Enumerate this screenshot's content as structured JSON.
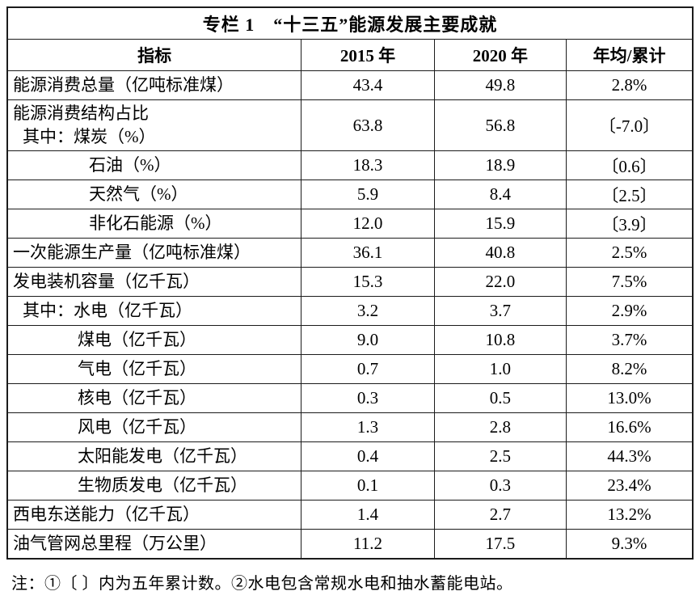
{
  "table": {
    "title": "专栏 1　“十三五”能源发展主要成就",
    "columns": [
      "指标",
      "2015 年",
      "2020 年",
      "年均/累计"
    ],
    "rows": [
      {
        "lines": [
          {
            "text": "能源消费总量（亿吨标准煤）",
            "indent": 0
          }
        ],
        "y2015": "43.4",
        "y2020": "49.8",
        "rate": "2.8%"
      },
      {
        "lines": [
          {
            "text": "能源消费结构占比",
            "indent": 0
          },
          {
            "text": "其中：煤炭（%）",
            "indent": 1
          }
        ],
        "y2015": "63.8",
        "y2020": "56.8",
        "rate": "〔-7.0〕"
      },
      {
        "lines": [
          {
            "text": "石油（%）",
            "indent": 2
          }
        ],
        "y2015": "18.3",
        "y2020": "18.9",
        "rate": "〔0.6〕"
      },
      {
        "lines": [
          {
            "text": "天然气（%）",
            "indent": 2
          }
        ],
        "y2015": "5.9",
        "y2020": "8.4",
        "rate": "〔2.5〕"
      },
      {
        "lines": [
          {
            "text": "非化石能源（%）",
            "indent": 2
          }
        ],
        "y2015": "12.0",
        "y2020": "15.9",
        "rate": "〔3.9〕"
      },
      {
        "lines": [
          {
            "text": "一次能源生产量（亿吨标准煤）",
            "indent": 0
          }
        ],
        "y2015": "36.1",
        "y2020": "40.8",
        "rate": "2.5%"
      },
      {
        "lines": [
          {
            "text": "发电装机容量（亿千瓦）",
            "indent": 0
          }
        ],
        "y2015": "15.3",
        "y2020": "22.0",
        "rate": "7.5%"
      },
      {
        "lines": [
          {
            "text": "其中：水电（亿千瓦）",
            "indent": 1
          }
        ],
        "y2015": "3.2",
        "y2020": "3.7",
        "rate": "2.9%"
      },
      {
        "lines": [
          {
            "text": "煤电（亿千瓦）",
            "indent": 3
          }
        ],
        "y2015": "9.0",
        "y2020": "10.8",
        "rate": "3.7%"
      },
      {
        "lines": [
          {
            "text": "气电（亿千瓦）",
            "indent": 3
          }
        ],
        "y2015": "0.7",
        "y2020": "1.0",
        "rate": "8.2%"
      },
      {
        "lines": [
          {
            "text": "核电（亿千瓦）",
            "indent": 3
          }
        ],
        "y2015": "0.3",
        "y2020": "0.5",
        "rate": "13.0%"
      },
      {
        "lines": [
          {
            "text": "风电（亿千瓦）",
            "indent": 3
          }
        ],
        "y2015": "1.3",
        "y2020": "2.8",
        "rate": "16.6%"
      },
      {
        "lines": [
          {
            "text": "太阳能发电（亿千瓦）",
            "indent": 3
          }
        ],
        "y2015": "0.4",
        "y2020": "2.5",
        "rate": "44.3%"
      },
      {
        "lines": [
          {
            "text": "生物质发电（亿千瓦）",
            "indent": 3
          }
        ],
        "y2015": "0.1",
        "y2020": "0.3",
        "rate": "23.4%"
      },
      {
        "lines": [
          {
            "text": "西电东送能力（亿千瓦）",
            "indent": 0
          }
        ],
        "y2015": "1.4",
        "y2020": "2.7",
        "rate": "13.2%"
      },
      {
        "lines": [
          {
            "text": "油气管网总里程（万公里）",
            "indent": 0
          }
        ],
        "y2015": "11.2",
        "y2020": "17.5",
        "rate": "9.3%"
      }
    ]
  },
  "note": "注：①〔 〕内为五年累计数。②水电包含常规水电和抽水蓄能电站。"
}
